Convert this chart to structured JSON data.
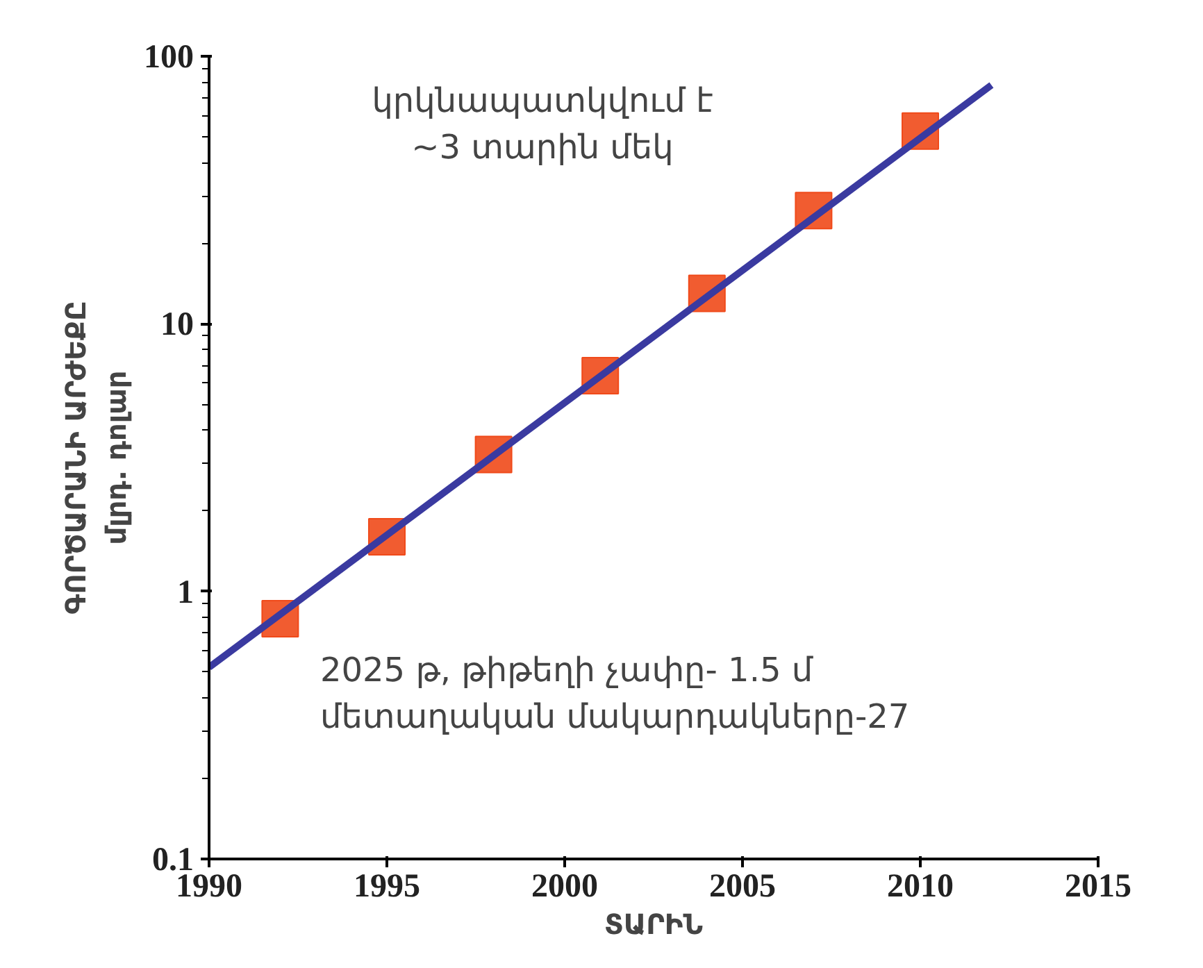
{
  "chart_data": {
    "type": "line",
    "xlabel": "ՏԱՐԻՆ",
    "ylabel": "ԳՈՐԾԱՐԱՆԻ ԱՐԺԵՔԸ\nմլրդ. դոլար",
    "x": [
      1992,
      1995,
      1998,
      2001,
      2004,
      2007,
      2010
    ],
    "series": [
      {
        "type": "scatter",
        "marker": "square",
        "color": "#f04a1a",
        "values": [
          0.79,
          1.6,
          3.25,
          6.4,
          13,
          26.5,
          52.5
        ]
      },
      {
        "color": "#3a3aa0",
        "x": [
          1990,
          2012
        ],
        "values": [
          0.52,
          78
        ]
      }
    ],
    "log": "y",
    "xlim": [
      1990,
      2015
    ],
    "ylim": [
      0.1,
      100
    ],
    "xticks": [
      1990,
      1995,
      2000,
      2005,
      2010,
      2015
    ],
    "yticks": [
      0.1,
      1,
      10,
      100
    ],
    "grid": false,
    "annotations": [
      "կրկնապատկվում է\n~3 տարին մեկ",
      "2025 թ,           թիթեղի չափը- 1.5 մ\nմետաղական մակարդակները-27"
    ]
  }
}
